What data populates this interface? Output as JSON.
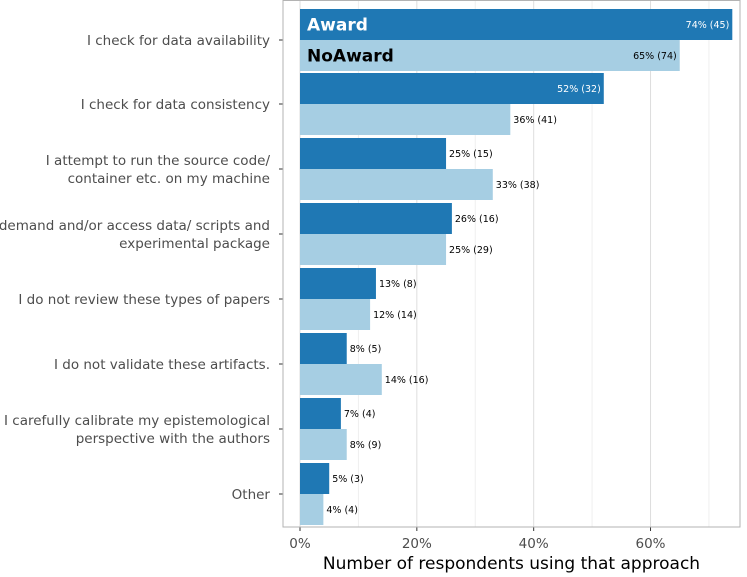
{
  "chart_data": {
    "type": "bar",
    "orientation": "horizontal",
    "title": "",
    "xlabel": "Number of respondents using that approach",
    "ylabel": "",
    "xlim": [
      0,
      75
    ],
    "x_ticks": [
      0,
      20,
      40,
      60
    ],
    "x_tick_labels": [
      "0%",
      "20%",
      "40%",
      "60%"
    ],
    "grid": true,
    "legend_position": "inside top-left (first bars)",
    "categories": [
      [
        "I check for data availability"
      ],
      [
        "I check for data consistency"
      ],
      [
        "I attempt to run the source code/",
        "container etc. on my machine"
      ],
      [
        "I demand and/or access data/ scripts and",
        "experimental package"
      ],
      [
        "I do not review these types of papers"
      ],
      [
        "I do not validate these artifacts."
      ],
      [
        "I carefully calibrate my epistemological",
        "perspective with the authors"
      ],
      [
        "Other"
      ]
    ],
    "series": [
      {
        "name": "Award",
        "color": "#1f78b4",
        "values": [
          74,
          52,
          25,
          26,
          13,
          8,
          7,
          5
        ],
        "labels": [
          "74% (45)",
          "52% (32)",
          "25% (15)",
          "26% (16)",
          "13% (8)",
          "8% (5)",
          "7% (4)",
          "5% (3)"
        ]
      },
      {
        "name": "NoAward",
        "color": "#a6cee3",
        "values": [
          65,
          36,
          33,
          25,
          12,
          14,
          8,
          4
        ],
        "labels": [
          "65% (74)",
          "36% (41)",
          "33% (38)",
          "25% (29)",
          "12% (14)",
          "14% (16)",
          "8% (9)",
          "4% (4)"
        ]
      }
    ]
  }
}
